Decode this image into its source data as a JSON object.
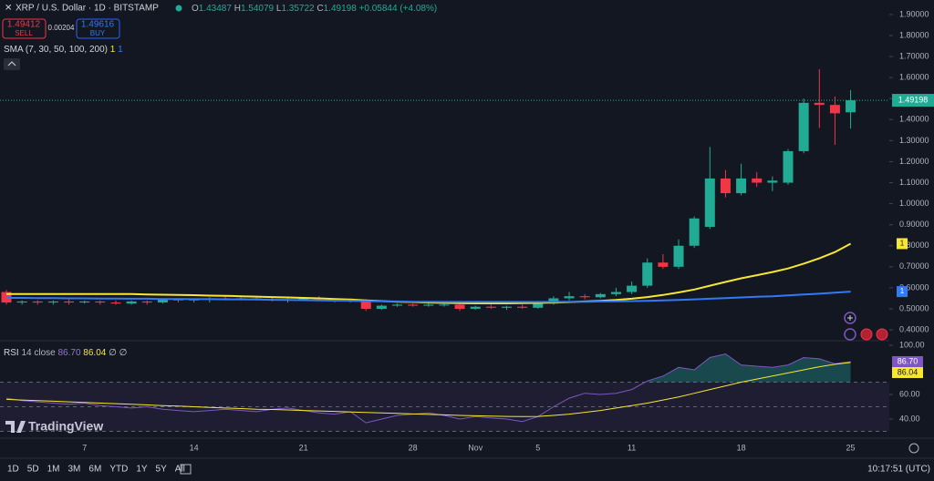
{
  "header": {
    "symbol": "XRP / U.S. Dollar · 1D · BITSTAMP",
    "o_label": "O",
    "h_label": "H",
    "l_label": "L",
    "c_label": "C",
    "change": "+0.05844 (+4.08%)"
  },
  "trade": {
    "sell_price": "1.49412",
    "sell": "SELL",
    "spread": "0.00204",
    "buy_price": "1.49616",
    "buy": "BUY"
  },
  "indicator": {
    "label": "SMA (7, 30, 50, 100, 200)",
    "v1": "1",
    "v2": "1"
  },
  "rsi_header": {
    "name": "RSI",
    "params": "14 close",
    "value": "86.70",
    "ma": "86.04",
    "extra": "∅ ∅"
  },
  "logo": "TradingView",
  "toolbar": {
    "ranges": [
      "1D",
      "5D",
      "1M",
      "3M",
      "6M",
      "YTD",
      "1Y",
      "5Y",
      "All"
    ],
    "time": "10:17:51 (UTC)"
  },
  "chart_data": [
    {
      "type": "candlestick",
      "categories": [
        null,
        null,
        null,
        null,
        null,
        "7",
        null,
        null,
        null,
        null,
        null,
        null,
        "14",
        null,
        null,
        null,
        null,
        null,
        null,
        "21",
        null,
        null,
        null,
        null,
        null,
        null,
        "28",
        null,
        null,
        null,
        "Nov",
        null,
        null,
        null,
        "5",
        null,
        null,
        null,
        null,
        null,
        "11",
        null,
        null,
        null,
        null,
        null,
        null,
        "18",
        null,
        null,
        null,
        null,
        null,
        null,
        "25"
      ],
      "open": [
        0.58,
        0.53,
        0.535,
        0.53,
        0.535,
        0.53,
        0.535,
        0.53,
        0.525,
        0.535,
        0.53,
        0.545,
        0.54,
        0.545,
        0.55,
        0.545,
        0.55,
        0.545,
        0.54,
        0.545,
        0.55,
        0.545,
        0.535,
        0.54,
        0.5,
        0.515,
        0.52,
        0.515,
        0.52,
        0.52,
        0.5,
        0.51,
        0.505,
        0.51,
        0.505,
        0.525,
        0.55,
        0.56,
        0.555,
        0.57,
        0.58,
        0.61,
        0.72,
        0.7,
        0.8,
        0.89,
        1.12,
        1.05,
        1.12,
        1.1,
        1.1,
        1.25,
        1.48,
        1.47,
        1.43487
      ],
      "high": [
        0.59,
        0.54,
        0.54,
        0.54,
        0.545,
        0.54,
        0.54,
        0.54,
        0.54,
        0.54,
        0.55,
        0.55,
        0.55,
        0.555,
        0.56,
        0.555,
        0.56,
        0.555,
        0.55,
        0.555,
        0.56,
        0.55,
        0.545,
        0.545,
        0.52,
        0.525,
        0.525,
        0.53,
        0.525,
        0.53,
        0.515,
        0.52,
        0.515,
        0.52,
        0.53,
        0.56,
        0.58,
        0.57,
        0.575,
        0.6,
        0.63,
        0.74,
        0.76,
        0.83,
        0.94,
        1.27,
        1.16,
        1.19,
        1.15,
        1.13,
        1.26,
        1.5,
        1.64,
        1.51,
        1.54079
      ],
      "low": [
        0.52,
        0.52,
        0.52,
        0.52,
        0.52,
        0.525,
        0.52,
        0.52,
        0.52,
        0.52,
        0.525,
        0.53,
        0.53,
        0.53,
        0.54,
        0.54,
        0.54,
        0.535,
        0.53,
        0.54,
        0.54,
        0.53,
        0.53,
        0.49,
        0.495,
        0.51,
        0.51,
        0.51,
        0.51,
        0.49,
        0.495,
        0.5,
        0.495,
        0.5,
        0.5,
        0.52,
        0.54,
        0.545,
        0.55,
        0.56,
        0.57,
        0.6,
        0.69,
        0.69,
        0.79,
        0.88,
        1.03,
        1.04,
        1.08,
        1.06,
        1.09,
        1.24,
        1.36,
        1.28,
        1.35722
      ],
      "close": [
        0.53,
        0.535,
        0.53,
        0.535,
        0.53,
        0.535,
        0.53,
        0.525,
        0.535,
        0.53,
        0.545,
        0.54,
        0.545,
        0.55,
        0.545,
        0.55,
        0.545,
        0.54,
        0.545,
        0.55,
        0.545,
        0.535,
        0.54,
        0.5,
        0.515,
        0.52,
        0.515,
        0.52,
        0.52,
        0.5,
        0.51,
        0.505,
        0.51,
        0.505,
        0.525,
        0.55,
        0.56,
        0.555,
        0.57,
        0.58,
        0.61,
        0.72,
        0.7,
        0.8,
        0.93,
        1.12,
        1.05,
        1.12,
        1.1,
        1.11,
        1.25,
        1.48,
        1.47,
        1.43,
        1.49198
      ],
      "up_color": "#22ab94",
      "down_color": "#f23645",
      "overlays": [
        {
          "color": "#f7e733",
          "values": [
            0.57,
            0.57,
            0.57,
            0.57,
            0.57,
            0.57,
            0.57,
            0.57,
            0.57,
            0.568,
            0.567,
            0.566,
            0.565,
            0.563,
            0.562,
            0.56,
            0.558,
            0.556,
            0.554,
            0.552,
            0.55,
            0.547,
            0.544,
            0.54,
            0.537,
            0.534,
            0.532,
            0.53,
            0.528,
            0.527,
            0.526,
            0.526,
            0.526,
            0.527,
            0.528,
            0.53,
            0.532,
            0.535,
            0.538,
            0.542,
            0.548,
            0.556,
            0.566,
            0.578,
            0.592,
            0.61,
            0.628,
            0.645,
            0.66,
            0.675,
            0.692,
            0.715,
            0.74,
            0.77,
            0.81
          ]
        },
        {
          "color": "#3179f5",
          "values": [
            0.552,
            0.552,
            0.551,
            0.551,
            0.55,
            0.55,
            0.549,
            0.549,
            0.548,
            0.548,
            0.547,
            0.547,
            0.546,
            0.546,
            0.545,
            0.545,
            0.544,
            0.543,
            0.542,
            0.541,
            0.54,
            0.539,
            0.538,
            0.537,
            0.536,
            0.535,
            0.534,
            0.534,
            0.533,
            0.533,
            0.533,
            0.533,
            0.533,
            0.533,
            0.533,
            0.533,
            0.534,
            0.534,
            0.535,
            0.536,
            0.537,
            0.538,
            0.54,
            0.542,
            0.545,
            0.548,
            0.551,
            0.554,
            0.557,
            0.56,
            0.564,
            0.568,
            0.572,
            0.577,
            0.582
          ]
        }
      ],
      "ylim": [
        0.357,
        1.969
      ],
      "yticks": [
        {
          "value": 0.4,
          "label": "0.40000"
        },
        {
          "value": 0.5,
          "label": "0.50000"
        },
        {
          "value": 0.6,
          "label": "0.60000"
        },
        {
          "value": 0.7,
          "label": "0.70000"
        },
        {
          "value": 0.8,
          "label": "0.80000"
        },
        {
          "value": 0.9,
          "label": "0.90000"
        },
        {
          "value": 1.0,
          "label": "1.00000"
        },
        {
          "value": 1.1,
          "label": "1.10000"
        },
        {
          "value": 1.2,
          "label": "1.20000"
        },
        {
          "value": 1.3,
          "label": "1.30000"
        },
        {
          "value": 1.4,
          "label": "1.40000"
        },
        {
          "value": 1.5,
          "label": "1.50000"
        },
        {
          "value": 1.6,
          "label": "1.60000"
        },
        {
          "value": 1.7,
          "label": "1.70000"
        },
        {
          "value": 1.8,
          "label": "1.80000"
        },
        {
          "value": 1.9,
          "label": "1.90000"
        }
      ],
      "grid": false
    },
    {
      "type": "line",
      "series": [
        {
          "name": "RSI",
          "color": "#7e57c2",
          "values": [
            57,
            55,
            54,
            53,
            52,
            53,
            51,
            50,
            49,
            50,
            48,
            47,
            46,
            47,
            48,
            47,
            46,
            48,
            49,
            47,
            45,
            44,
            46,
            37,
            40,
            43,
            44,
            45,
            43,
            40,
            42,
            41,
            40,
            38,
            42,
            50,
            57,
            61,
            60,
            61,
            64,
            71,
            75,
            82,
            80,
            90,
            93,
            84,
            83,
            82,
            84,
            90,
            89,
            85,
            86.7
          ]
        },
        {
          "color": "#f7e733",
          "values": [
            56,
            55.5,
            55,
            54.5,
            54,
            53.5,
            53,
            52.5,
            52,
            51.5,
            51,
            50.5,
            50,
            49.5,
            49,
            48.5,
            48,
            47.8,
            47.4,
            47,
            46.6,
            46.2,
            45.8,
            45.4,
            45,
            44.6,
            44.2,
            43.8,
            43.4,
            43,
            42.7,
            42.4,
            42.2,
            42,
            42.2,
            43,
            44,
            45.5,
            47,
            49,
            51,
            53,
            55.5,
            58,
            61,
            64,
            67,
            70,
            72.5,
            75,
            77.5,
            80,
            82.5,
            84.5,
            86.04
          ]
        }
      ],
      "levels": [
        70,
        50,
        30
      ],
      "overbought_color": "#26a69a",
      "ylim": [
        25.2,
        105.2
      ],
      "yticks": [
        {
          "value": 100,
          "label": "100.00"
        },
        {
          "value": 60,
          "label": "60.00"
        },
        {
          "value": 40,
          "label": "40.00"
        }
      ]
    }
  ]
}
